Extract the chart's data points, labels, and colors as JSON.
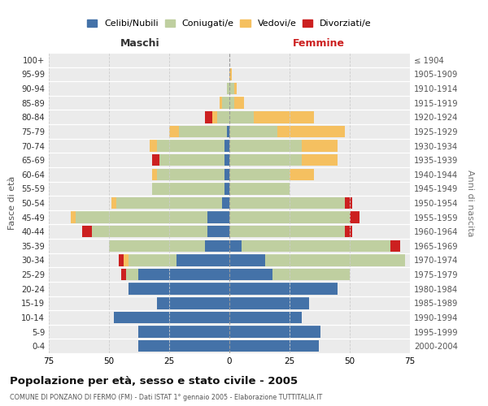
{
  "age_groups": [
    "100+",
    "95-99",
    "90-94",
    "85-89",
    "80-84",
    "75-79",
    "70-74",
    "65-69",
    "60-64",
    "55-59",
    "50-54",
    "45-49",
    "40-44",
    "35-39",
    "30-34",
    "25-29",
    "20-24",
    "15-19",
    "10-14",
    "5-9",
    "0-4"
  ],
  "birth_years": [
    "≤ 1904",
    "1905-1909",
    "1910-1914",
    "1915-1919",
    "1920-1924",
    "1925-1929",
    "1930-1934",
    "1935-1939",
    "1940-1944",
    "1945-1949",
    "1950-1954",
    "1955-1959",
    "1960-1964",
    "1965-1969",
    "1970-1974",
    "1975-1979",
    "1980-1984",
    "1985-1989",
    "1990-1994",
    "1995-1999",
    "2000-2004"
  ],
  "colors": {
    "celibi": "#4472a8",
    "coniugati": "#bfcfa0",
    "vedovi": "#f5c060",
    "divorziati": "#cc2020"
  },
  "maschi": {
    "celibi": [
      0,
      0,
      0,
      0,
      0,
      1,
      2,
      2,
      2,
      2,
      3,
      9,
      9,
      10,
      22,
      38,
      42,
      30,
      48,
      38,
      38
    ],
    "coniugati": [
      0,
      0,
      1,
      3,
      5,
      20,
      28,
      27,
      28,
      30,
      44,
      55,
      48,
      40,
      20,
      5,
      0,
      0,
      0,
      0,
      0
    ],
    "vedovi": [
      0,
      0,
      0,
      1,
      2,
      4,
      3,
      0,
      2,
      0,
      2,
      2,
      0,
      0,
      2,
      0,
      0,
      0,
      0,
      0,
      0
    ],
    "divorziati": [
      0,
      0,
      0,
      0,
      3,
      0,
      0,
      3,
      0,
      0,
      0,
      0,
      4,
      0,
      2,
      2,
      0,
      0,
      0,
      0,
      0
    ]
  },
  "femmine": {
    "celibi": [
      0,
      0,
      0,
      0,
      0,
      0,
      0,
      0,
      0,
      0,
      0,
      0,
      0,
      5,
      15,
      18,
      45,
      33,
      30,
      38,
      37
    ],
    "coniugati": [
      0,
      0,
      2,
      2,
      10,
      20,
      30,
      30,
      25,
      25,
      48,
      50,
      48,
      62,
      58,
      32,
      0,
      0,
      0,
      0,
      0
    ],
    "vedovi": [
      0,
      1,
      1,
      4,
      25,
      28,
      15,
      15,
      10,
      0,
      0,
      0,
      0,
      0,
      0,
      0,
      0,
      0,
      0,
      0,
      0
    ],
    "divorziati": [
      0,
      0,
      0,
      0,
      0,
      0,
      0,
      0,
      0,
      0,
      3,
      4,
      3,
      4,
      0,
      0,
      0,
      0,
      0,
      0,
      0
    ]
  },
  "xlim": 75,
  "title": "Popolazione per età, sesso e stato civile - 2005",
  "subtitle": "COMUNE DI PONZANO DI FERMO (FM) - Dati ISTAT 1° gennaio 2005 - Elaborazione TUTTITALIA.IT",
  "ylabel_left": "Fasce di età",
  "ylabel_right": "Anni di nascita",
  "label_maschi": "Maschi",
  "label_femmine": "Femmine",
  "legend_labels": [
    "Celibi/Nubili",
    "Coniugati/e",
    "Vedovi/e",
    "Divorziati/e"
  ],
  "bg_color": "#ebebeb"
}
